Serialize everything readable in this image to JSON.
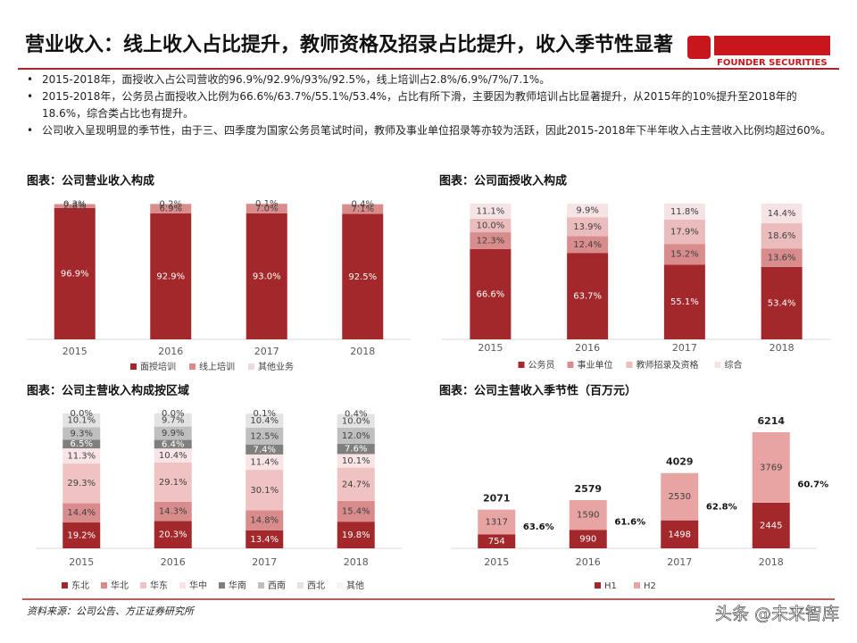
{
  "header": {
    "title": "营业收入：线上收入占比提升，教师资格及招录占比提升，收入季节性显著",
    "logo_text": "FOUNDER SECURITIES"
  },
  "bullets": [
    "2015-2018年，面授收入占公司营收的96.9%/92.9%/93%/92.5%，线上培训占2.8%/6.9%/7%/7.1%。",
    "2015-2018年，公务员占面授收入比例为66.6%/63.7%/55.1%/53.4%，占比有所下滑，主要因为教师培训占比显著提升，从2015年的10%提升至2018年的18.6%，综合类占比也有提升。",
    "公司收入呈现明显的季节性，由于三、四季度为国家公务员笔试时间，教师及事业单位招录等亦较为活跃，因此2015-2018年下半年收入占主营收入比例均超过60%。"
  ],
  "footer": {
    "source": "资料来源：公司公告、方正证券研究所",
    "watermark": "头条 @未来智库"
  },
  "chart_data": [
    {
      "type": "stacked_bar",
      "title": "图表：公司营业收入构成",
      "categories": [
        "2015",
        "2016",
        "2017",
        "2018"
      ],
      "legend": "bottom",
      "series": [
        {
          "name": "面授培训",
          "color": "#a3282b",
          "values": [
            96.9,
            92.9,
            93.0,
            92.5
          ],
          "value_labels": [
            "96.9%",
            "92.9%",
            "93.0%",
            "92.5%"
          ]
        },
        {
          "name": "线上培训",
          "color": "#d98c8c",
          "values": [
            2.8,
            6.9,
            7.0,
            7.1
          ],
          "value_labels": [
            "2.8%",
            "6.9%",
            "7.0%",
            "7.1%"
          ]
        },
        {
          "name": "其他业务",
          "color": "#eadada",
          "values": [
            0.3,
            0.2,
            0.1,
            0.4
          ],
          "value_labels": [
            "0.3%",
            "0.2%",
            "0.1%",
            "0.4%"
          ]
        }
      ]
    },
    {
      "type": "stacked_bar",
      "title": "图表：公司面授收入构成",
      "categories": [
        "2015",
        "2016",
        "2017",
        "2018"
      ],
      "legend": "bottom",
      "series": [
        {
          "name": "公务员",
          "color": "#a3282b",
          "values": [
            66.6,
            63.7,
            55.1,
            53.4
          ],
          "value_labels": [
            "66.6%",
            "63.7%",
            "55.1%",
            "53.4%"
          ]
        },
        {
          "name": "事业单位",
          "color": "#d98c8c",
          "values": [
            12.3,
            12.4,
            15.2,
            13.6
          ],
          "value_labels": [
            "12.3%",
            "12.4%",
            "15.2%",
            "13.6%"
          ]
        },
        {
          "name": "教师招录及资格",
          "color": "#ebbcbc",
          "values": [
            10.0,
            13.9,
            17.9,
            18.6
          ],
          "value_labels": [
            "10.0%",
            "13.9%",
            "17.9%",
            "18.6%"
          ]
        },
        {
          "name": "综合",
          "color": "#f6e3e3",
          "values": [
            11.1,
            9.9,
            11.8,
            14.4
          ],
          "value_labels": [
            "11.1%",
            "9.9%",
            "11.8%",
            "14.4%"
          ]
        }
      ]
    },
    {
      "type": "stacked_bar",
      "title": "图表：公司主营收入构成按区域",
      "categories": [
        "2015",
        "2016",
        "2017",
        "2018"
      ],
      "legend": "bottom",
      "series": [
        {
          "name": "东北",
          "color": "#a3282b",
          "values": [
            19.2,
            20.3,
            13.4,
            19.8
          ],
          "value_labels": [
            "19.2%",
            "20.3%",
            "13.4%",
            "19.8%"
          ]
        },
        {
          "name": "华北",
          "color": "#d98c8c",
          "values": [
            14.4,
            14.3,
            14.8,
            15.4
          ],
          "value_labels": [
            "14.4%",
            "14.3%",
            "14.8%",
            "15.4%"
          ]
        },
        {
          "name": "华东",
          "color": "#f0c3c3",
          "values": [
            29.3,
            29.1,
            30.1,
            24.7
          ],
          "value_labels": [
            "29.3%",
            "29.1%",
            "30.1%",
            "24.7%"
          ]
        },
        {
          "name": "华中",
          "color": "#f8e4e4",
          "values": [
            11.3,
            10.4,
            11.4,
            10.1
          ],
          "value_labels": [
            "11.3%",
            "10.4%",
            "11.4%",
            "10.1%"
          ]
        },
        {
          "name": "华南",
          "color": "#7f7f7f",
          "values": [
            6.5,
            6.4,
            7.4,
            7.6
          ],
          "value_labels": [
            "6.5%",
            "6.4%",
            "7.4%",
            "7.6%"
          ]
        },
        {
          "name": "西南",
          "color": "#bfbfbf",
          "values": [
            9.3,
            9.9,
            12.5,
            12.0
          ],
          "value_labels": [
            "9.3%",
            "9.9%",
            "12.5%",
            "12.0%"
          ]
        },
        {
          "name": "西北",
          "color": "#e3e3e3",
          "values": [
            10.1,
            9.7,
            10.4,
            10.0
          ],
          "value_labels": [
            "10.1%",
            "9.7%",
            "10.4%",
            "10.0%"
          ]
        },
        {
          "name": "其他",
          "color": "#f4f4f4",
          "values": [
            0.0,
            0.0,
            0.1,
            0.4
          ],
          "value_labels": [
            "0.0%",
            "0.0%",
            "0.1%",
            "0.4%"
          ]
        }
      ]
    },
    {
      "type": "stacked_bar",
      "title": "图表：公司主营收入季节性（百万元）",
      "categories": [
        "2015",
        "2016",
        "2017",
        "2018"
      ],
      "legend": "bottom",
      "series": [
        {
          "name": "H1",
          "color": "#a3282b",
          "values": [
            754,
            990,
            1498,
            2445
          ]
        },
        {
          "name": "H2",
          "color": "#e8a3a3",
          "values": [
            1317,
            1590,
            2530,
            3769
          ]
        }
      ],
      "totals": [
        2071,
        2579,
        4029,
        6214
      ],
      "share": {
        "values": [
          63.6,
          61.6,
          62.8,
          60.7
        ],
        "value_labels": [
          "63.6%",
          "61.6%",
          "62.8%",
          "60.7%"
        ]
      }
    }
  ]
}
